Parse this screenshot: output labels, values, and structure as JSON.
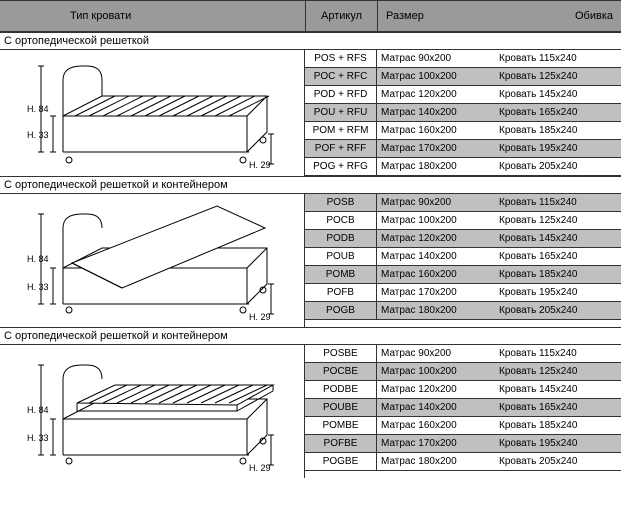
{
  "header": {
    "type_label": "Тип кровати",
    "article_label": "Артикул",
    "size_label": "Размер",
    "cover_label": "Обивка"
  },
  "colors": {
    "header_bg": "#9a9a9a",
    "alt_row_bg": "#c0c0c0",
    "border": "#333333",
    "text": "#000000",
    "bg": "#ffffff"
  },
  "sections": [
    {
      "title": "С ортопедической решеткой",
      "illustration": "bed-flat",
      "dims": {
        "h_total": "H. 84",
        "h_base": "H. 33",
        "h_leg": "H. 29"
      },
      "rows": [
        {
          "article": "POS + RFS",
          "mattress": "Матрас   90x200",
          "bed": "Кровать 115x240",
          "alt": false
        },
        {
          "article": "POC + RFC",
          "mattress": "Матрас 100x200",
          "bed": "Кровать 125x240",
          "alt": true
        },
        {
          "article": "POD + RFD",
          "mattress": "Матрас 120x200",
          "bed": "Кровать 145x240",
          "alt": false
        },
        {
          "article": "POU + RFU",
          "mattress": "Матрас 140x200",
          "bed": "Кровать 165x240",
          "alt": true
        },
        {
          "article": "POM + RFM",
          "mattress": "Матрас 160x200",
          "bed": "Кровать 185x240",
          "alt": false
        },
        {
          "article": "POF + RFF",
          "mattress": "Матрас 170x200",
          "bed": "Кровать 195x240",
          "alt": true
        },
        {
          "article": "POG + RFG",
          "mattress": "Матрас 180x200",
          "bed": "Кровать 205x240",
          "alt": false
        }
      ]
    },
    {
      "title": "С ортопедической решеткой и контейнером",
      "illustration": "bed-open",
      "dims": {
        "h_total": "H. 84",
        "h_base": "H. 33",
        "h_leg": "H. 29"
      },
      "rows": [
        {
          "article": "POSB",
          "mattress": "Матрас   90x200",
          "bed": "Кровать 115x240",
          "alt": true
        },
        {
          "article": "POCB",
          "mattress": "Матрас 100x200",
          "bed": "Кровать 125x240",
          "alt": false
        },
        {
          "article": "PODB",
          "mattress": "Матрас 120x200",
          "bed": "Кровать 145x240",
          "alt": true
        },
        {
          "article": "POUB",
          "mattress": "Матрас 140x200",
          "bed": "Кровать 165x240",
          "alt": false
        },
        {
          "article": "POMB",
          "mattress": "Матрас 160x200",
          "bed": "Кровать 185x240",
          "alt": true
        },
        {
          "article": "POFB",
          "mattress": "Матрас 170x200",
          "bed": "Кровать 195x240",
          "alt": false
        },
        {
          "article": "POGB",
          "mattress": "Матрас 180x200",
          "bed": "Кровать 205x240",
          "alt": true
        }
      ]
    },
    {
      "title": "С ортопедической решеткой и контейнером",
      "illustration": "bed-slats",
      "dims": {
        "h_total": "H. 84",
        "h_base": "H. 33",
        "h_leg": "H. 29"
      },
      "rows": [
        {
          "article": "POSBE",
          "mattress": "Матрас   90x200",
          "bed": "Кровать 115x240",
          "alt": false
        },
        {
          "article": "POCBE",
          "mattress": "Матрас 100x200",
          "bed": "Кровать 125x240",
          "alt": true
        },
        {
          "article": "PODBE",
          "mattress": "Матрас 120x200",
          "bed": "Кровать 145x240",
          "alt": false
        },
        {
          "article": "POUBE",
          "mattress": "Матрас 140x200",
          "bed": "Кровать 165x240",
          "alt": true
        },
        {
          "article": "POMBE",
          "mattress": "Матрас 160x200",
          "bed": "Кровать 185x240",
          "alt": false
        },
        {
          "article": "POFBE",
          "mattress": "Матрас 170x200",
          "bed": "Кровать 195x240",
          "alt": true
        },
        {
          "article": "POGBE",
          "mattress": "Матрас 180x200",
          "bed": "Кровать 205x240",
          "alt": false
        }
      ]
    }
  ]
}
